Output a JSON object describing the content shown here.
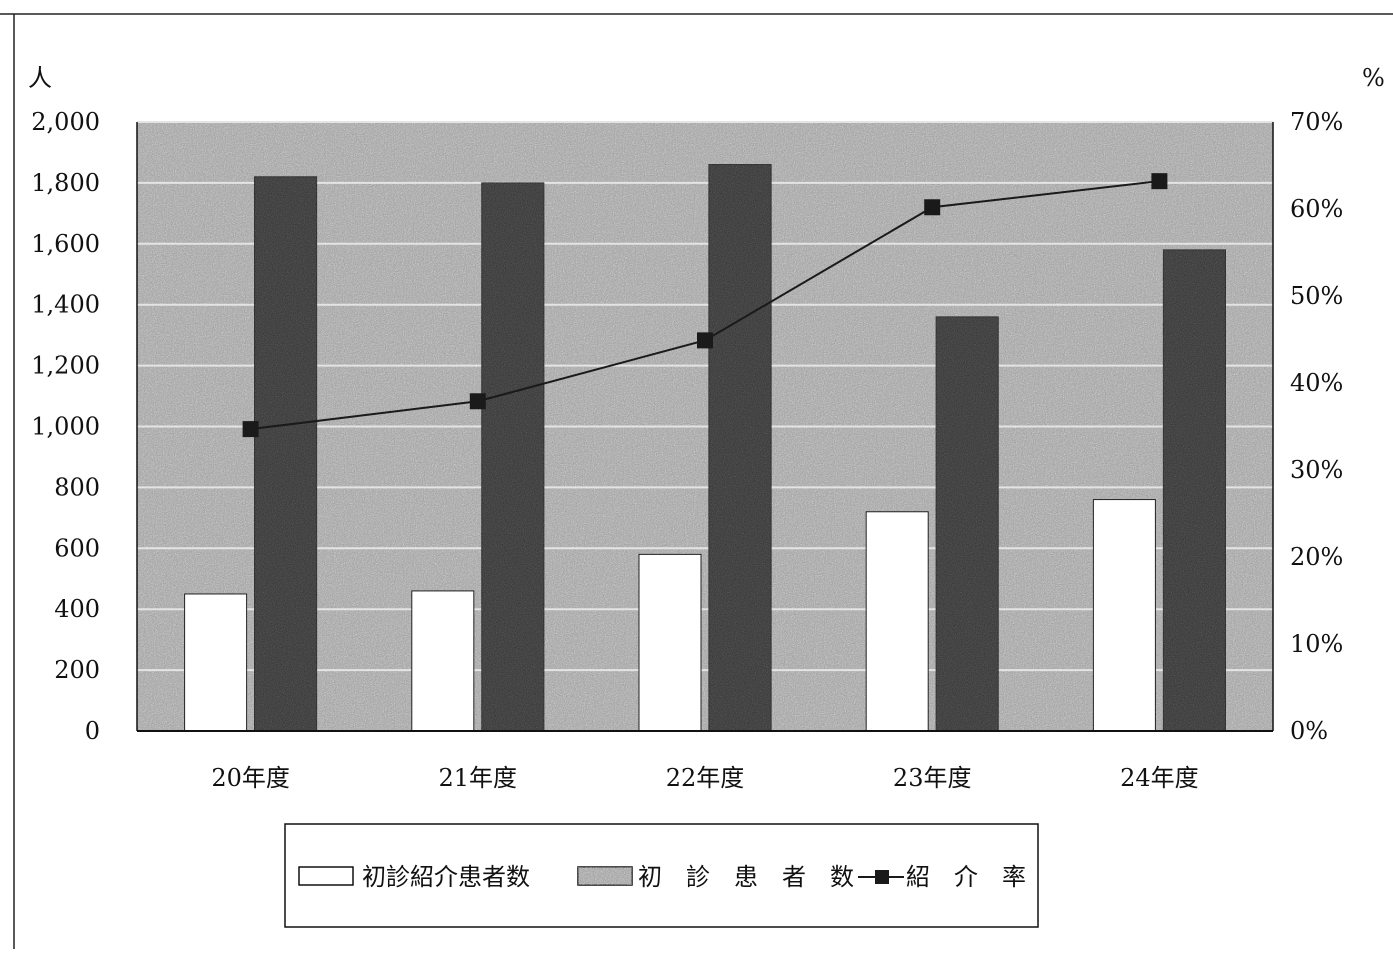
{
  "chart_data": {
    "type": "bar",
    "categories": [
      "20年度",
      "21年度",
      "22年度",
      "23年度",
      "24年度"
    ],
    "series": [
      {
        "name": "初診紹介患者数",
        "kind": "bar",
        "axis": "left",
        "values": [
          450,
          460,
          580,
          720,
          760
        ]
      },
      {
        "name": "初　診　患　者　数",
        "kind": "bar",
        "axis": "left",
        "values": [
          1820,
          1800,
          1860,
          1360,
          1580
        ]
      },
      {
        "name": "紹　介　率",
        "kind": "line",
        "axis": "right",
        "values": [
          34.7,
          37.9,
          44.9,
          60.2,
          63.2
        ]
      }
    ],
    "y_left": {
      "unit_label": "人",
      "ylim": [
        0,
        2000
      ],
      "ticks": [
        "0",
        "200",
        "400",
        "600",
        "800",
        "1,000",
        "1,200",
        "1,400",
        "1,600",
        "1,800",
        "2,000"
      ]
    },
    "y_right": {
      "unit_label": "%",
      "ylim": [
        0,
        70
      ],
      "ticks": [
        "0%",
        "10%",
        "20%",
        "30%",
        "40%",
        "50%",
        "60%",
        "70%"
      ]
    },
    "grid": true,
    "legend_position": "bottom",
    "colors": {
      "plot_background": "#9a9a9a",
      "gridline": "#e4e4e4",
      "bar_referral": "#ffffff",
      "bar_first_visit": "#2a2a2a",
      "line": "#1a1a1a"
    }
  }
}
